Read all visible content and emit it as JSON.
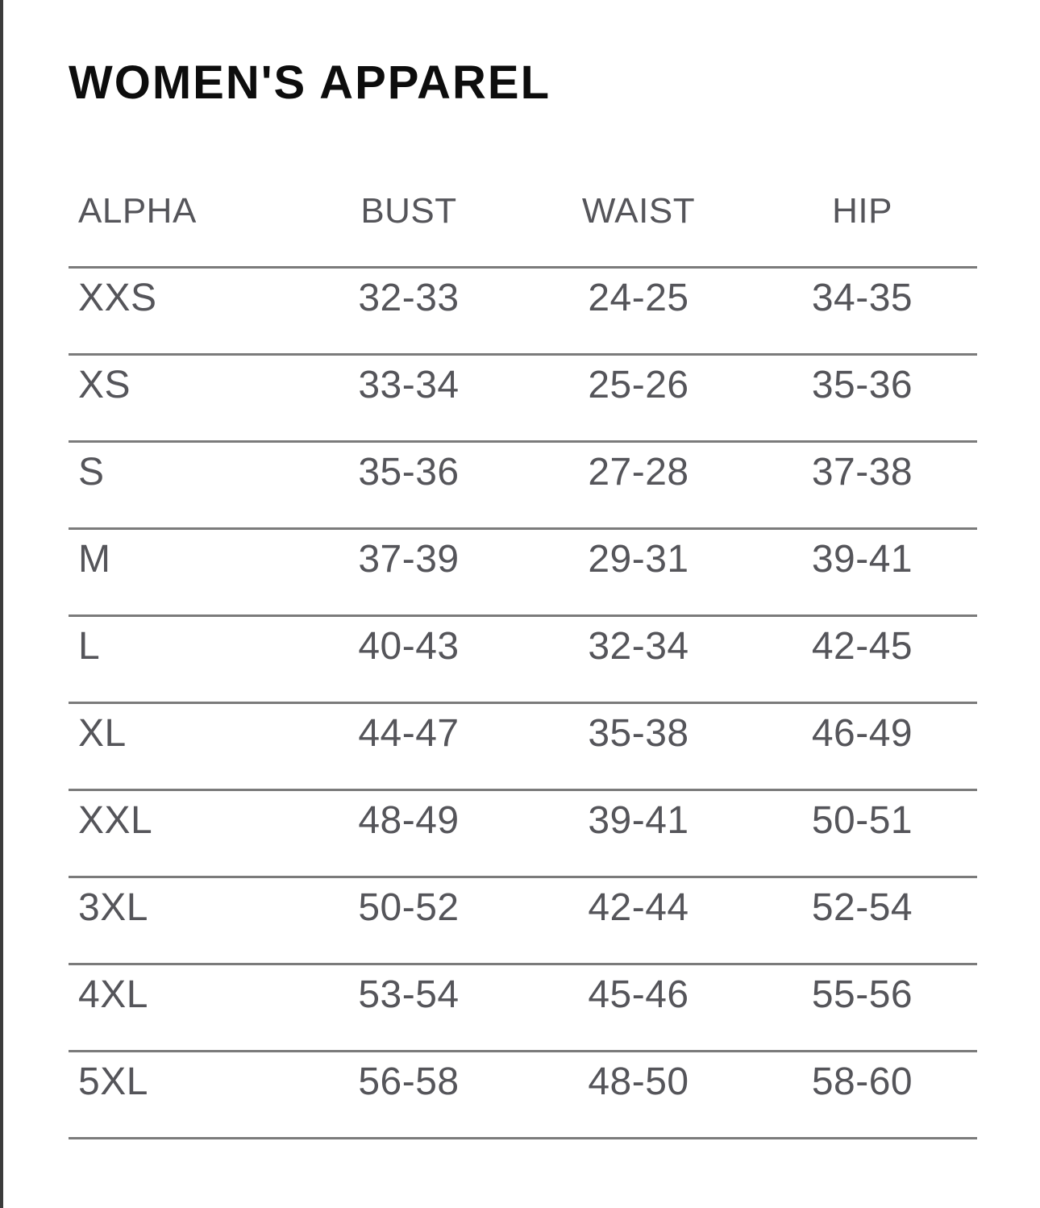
{
  "page": {
    "title": "WOMEN'S APPAREL"
  },
  "colors": {
    "background": "#ffffff",
    "title_text": "#0d0d0d",
    "table_text": "#55555a",
    "divider": "#7b7b7b",
    "left_edge_line": "#3b3b3b"
  },
  "table": {
    "headers": {
      "alpha": "ALPHA",
      "bust": "BUST",
      "waist": "WAIST",
      "hip": "HIP"
    },
    "rows": [
      {
        "alpha": "XXS",
        "bust": "32-33",
        "waist": "24-25",
        "hip": "34-35"
      },
      {
        "alpha": "XS",
        "bust": "33-34",
        "waist": "25-26",
        "hip": "35-36"
      },
      {
        "alpha": "S",
        "bust": "35-36",
        "waist": "27-28",
        "hip": "37-38"
      },
      {
        "alpha": "M",
        "bust": "37-39",
        "waist": "29-31",
        "hip": "39-41"
      },
      {
        "alpha": "L",
        "bust": "40-43",
        "waist": "32-34",
        "hip": "42-45"
      },
      {
        "alpha": "XL",
        "bust": "44-47",
        "waist": "35-38",
        "hip": "46-49"
      },
      {
        "alpha": "XXL",
        "bust": "48-49",
        "waist": "39-41",
        "hip": "50-51"
      },
      {
        "alpha": "3XL",
        "bust": "50-52",
        "waist": "42-44",
        "hip": "52-54"
      },
      {
        "alpha": "4XL",
        "bust": "53-54",
        "waist": "45-46",
        "hip": "55-56"
      },
      {
        "alpha": "5XL",
        "bust": "56-58",
        "waist": "48-50",
        "hip": "58-60"
      }
    ]
  },
  "chart_data": {
    "type": "table",
    "title": "WOMEN'S APPAREL",
    "columns": [
      "ALPHA",
      "BUST",
      "WAIST",
      "HIP"
    ],
    "rows": [
      [
        "XXS",
        "32-33",
        "24-25",
        "34-35"
      ],
      [
        "XS",
        "33-34",
        "25-26",
        "35-36"
      ],
      [
        "S",
        "35-36",
        "27-28",
        "37-38"
      ],
      [
        "M",
        "37-39",
        "29-31",
        "39-41"
      ],
      [
        "L",
        "40-43",
        "32-34",
        "42-45"
      ],
      [
        "XL",
        "44-47",
        "35-38",
        "46-49"
      ],
      [
        "XXL",
        "48-49",
        "39-41",
        "50-51"
      ],
      [
        "3XL",
        "50-52",
        "42-44",
        "52-54"
      ],
      [
        "4XL",
        "53-54",
        "45-46",
        "55-56"
      ],
      [
        "5XL",
        "56-58",
        "48-50",
        "58-60"
      ]
    ]
  }
}
